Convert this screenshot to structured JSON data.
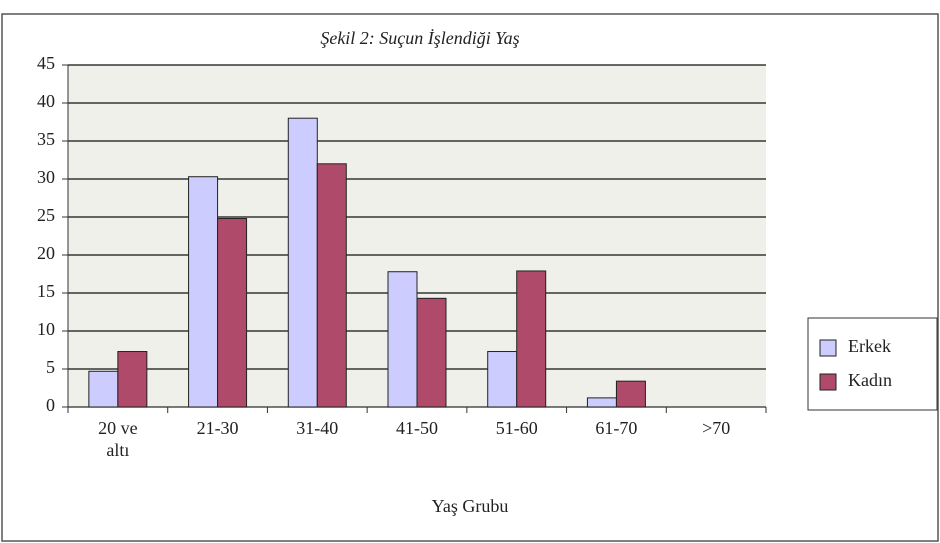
{
  "chart_data": {
    "type": "bar",
    "title": "Şekil 2: Suçun İşlendiği Yaş",
    "x_label": "Yaş Grubu",
    "categories": [
      "20 ve altı",
      "21-30",
      "31-40",
      "41-50",
      "51-60",
      "61-70",
      ">70"
    ],
    "series": [
      {
        "name": "Erkek",
        "color": "#ccccff",
        "values": [
          4.7,
          30.3,
          38,
          17.8,
          7.3,
          1.2,
          0
        ]
      },
      {
        "name": "Kadın",
        "color": "#b04a6a",
        "values": [
          7.3,
          24.8,
          32,
          14.3,
          17.9,
          3.4,
          0
        ]
      }
    ],
    "ylim": [
      0,
      45
    ],
    "yticks": [
      0,
      5,
      10,
      15,
      20,
      25,
      30,
      35,
      40,
      45
    ],
    "grid": true,
    "legend": "right"
  }
}
